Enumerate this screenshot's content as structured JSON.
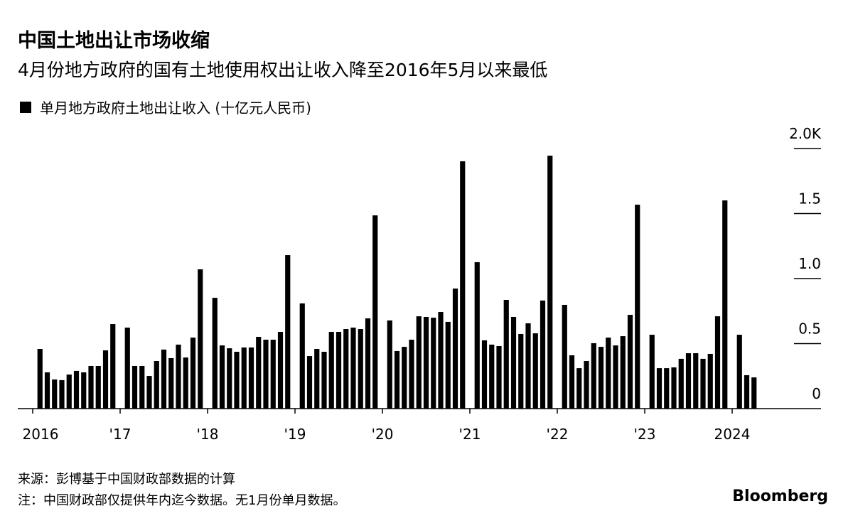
{
  "chart_data": {
    "type": "bar",
    "title": "中国土地出让市场收缩",
    "subtitle": "4月份地方政府的国有土地使用权出让收入降至2016年5月以来最低",
    "color": "#000000",
    "categories": [
      "2016",
      null,
      null,
      null,
      null,
      null,
      null,
      null,
      null,
      null,
      null,
      null,
      "'17",
      null,
      null,
      null,
      null,
      null,
      null,
      null,
      null,
      null,
      null,
      null,
      "'18",
      null,
      null,
      null,
      null,
      null,
      null,
      null,
      null,
      null,
      null,
      null,
      "'19",
      null,
      null,
      null,
      null,
      null,
      null,
      null,
      null,
      null,
      null,
      null,
      "'20",
      null,
      null,
      null,
      null,
      null,
      null,
      null,
      null,
      null,
      null,
      null,
      "'21",
      null,
      null,
      null,
      null,
      null,
      null,
      null,
      null,
      null,
      null,
      null,
      "'22",
      null,
      null,
      null,
      null,
      null,
      null,
      null,
      null,
      null,
      null,
      null,
      "'23",
      null,
      null,
      null,
      null,
      null,
      null,
      null,
      null,
      null,
      null,
      null,
      "2024",
      null,
      null,
      null
    ],
    "series": [
      {
        "name": "单月地方政府土地出让收入 (十亿元人民币)",
        "color": "#000000",
        "values": [
          null,
          459,
          279,
          224,
          219,
          262,
          290,
          279,
          328,
          328,
          448,
          650,
          null,
          623,
          328,
          328,
          251,
          366,
          454,
          388,
          492,
          393,
          546,
          1071,
          null,
          852,
          486,
          464,
          437,
          470,
          470,
          552,
          530,
          530,
          590,
          1180,
          null,
          809,
          404,
          459,
          437,
          590,
          590,
          612,
          623,
          612,
          694,
          1486,
          null,
          678,
          443,
          475,
          530,
          710,
          705,
          699,
          743,
          667,
          923,
          1902,
          null,
          1126,
          525,
          492,
          481,
          836,
          705,
          574,
          656,
          579,
          831,
          1945,
          null,
          798,
          410,
          311,
          366,
          503,
          475,
          546,
          486,
          557,
          721,
          1568,
          null,
          568,
          311,
          311,
          317,
          383,
          426,
          426,
          383,
          421,
          710,
          1601,
          null,
          568,
          257,
          240
        ]
      }
    ],
    "ylim": [
      0,
      2000
    ],
    "yticks": [
      0,
      {
        "value": 500,
        "label": "0.5"
      },
      {
        "value": 1000,
        "label": "1.0"
      },
      {
        "value": 1500,
        "label": "1.5"
      },
      {
        "value": 2000,
        "label": "2.0K"
      }
    ],
    "source": "来源：彭博基于中国财政部数据的计算",
    "note": "注：中国财政部仅提供年内迄今数据。无1月份单月数据。",
    "brand": "Bloomberg"
  }
}
